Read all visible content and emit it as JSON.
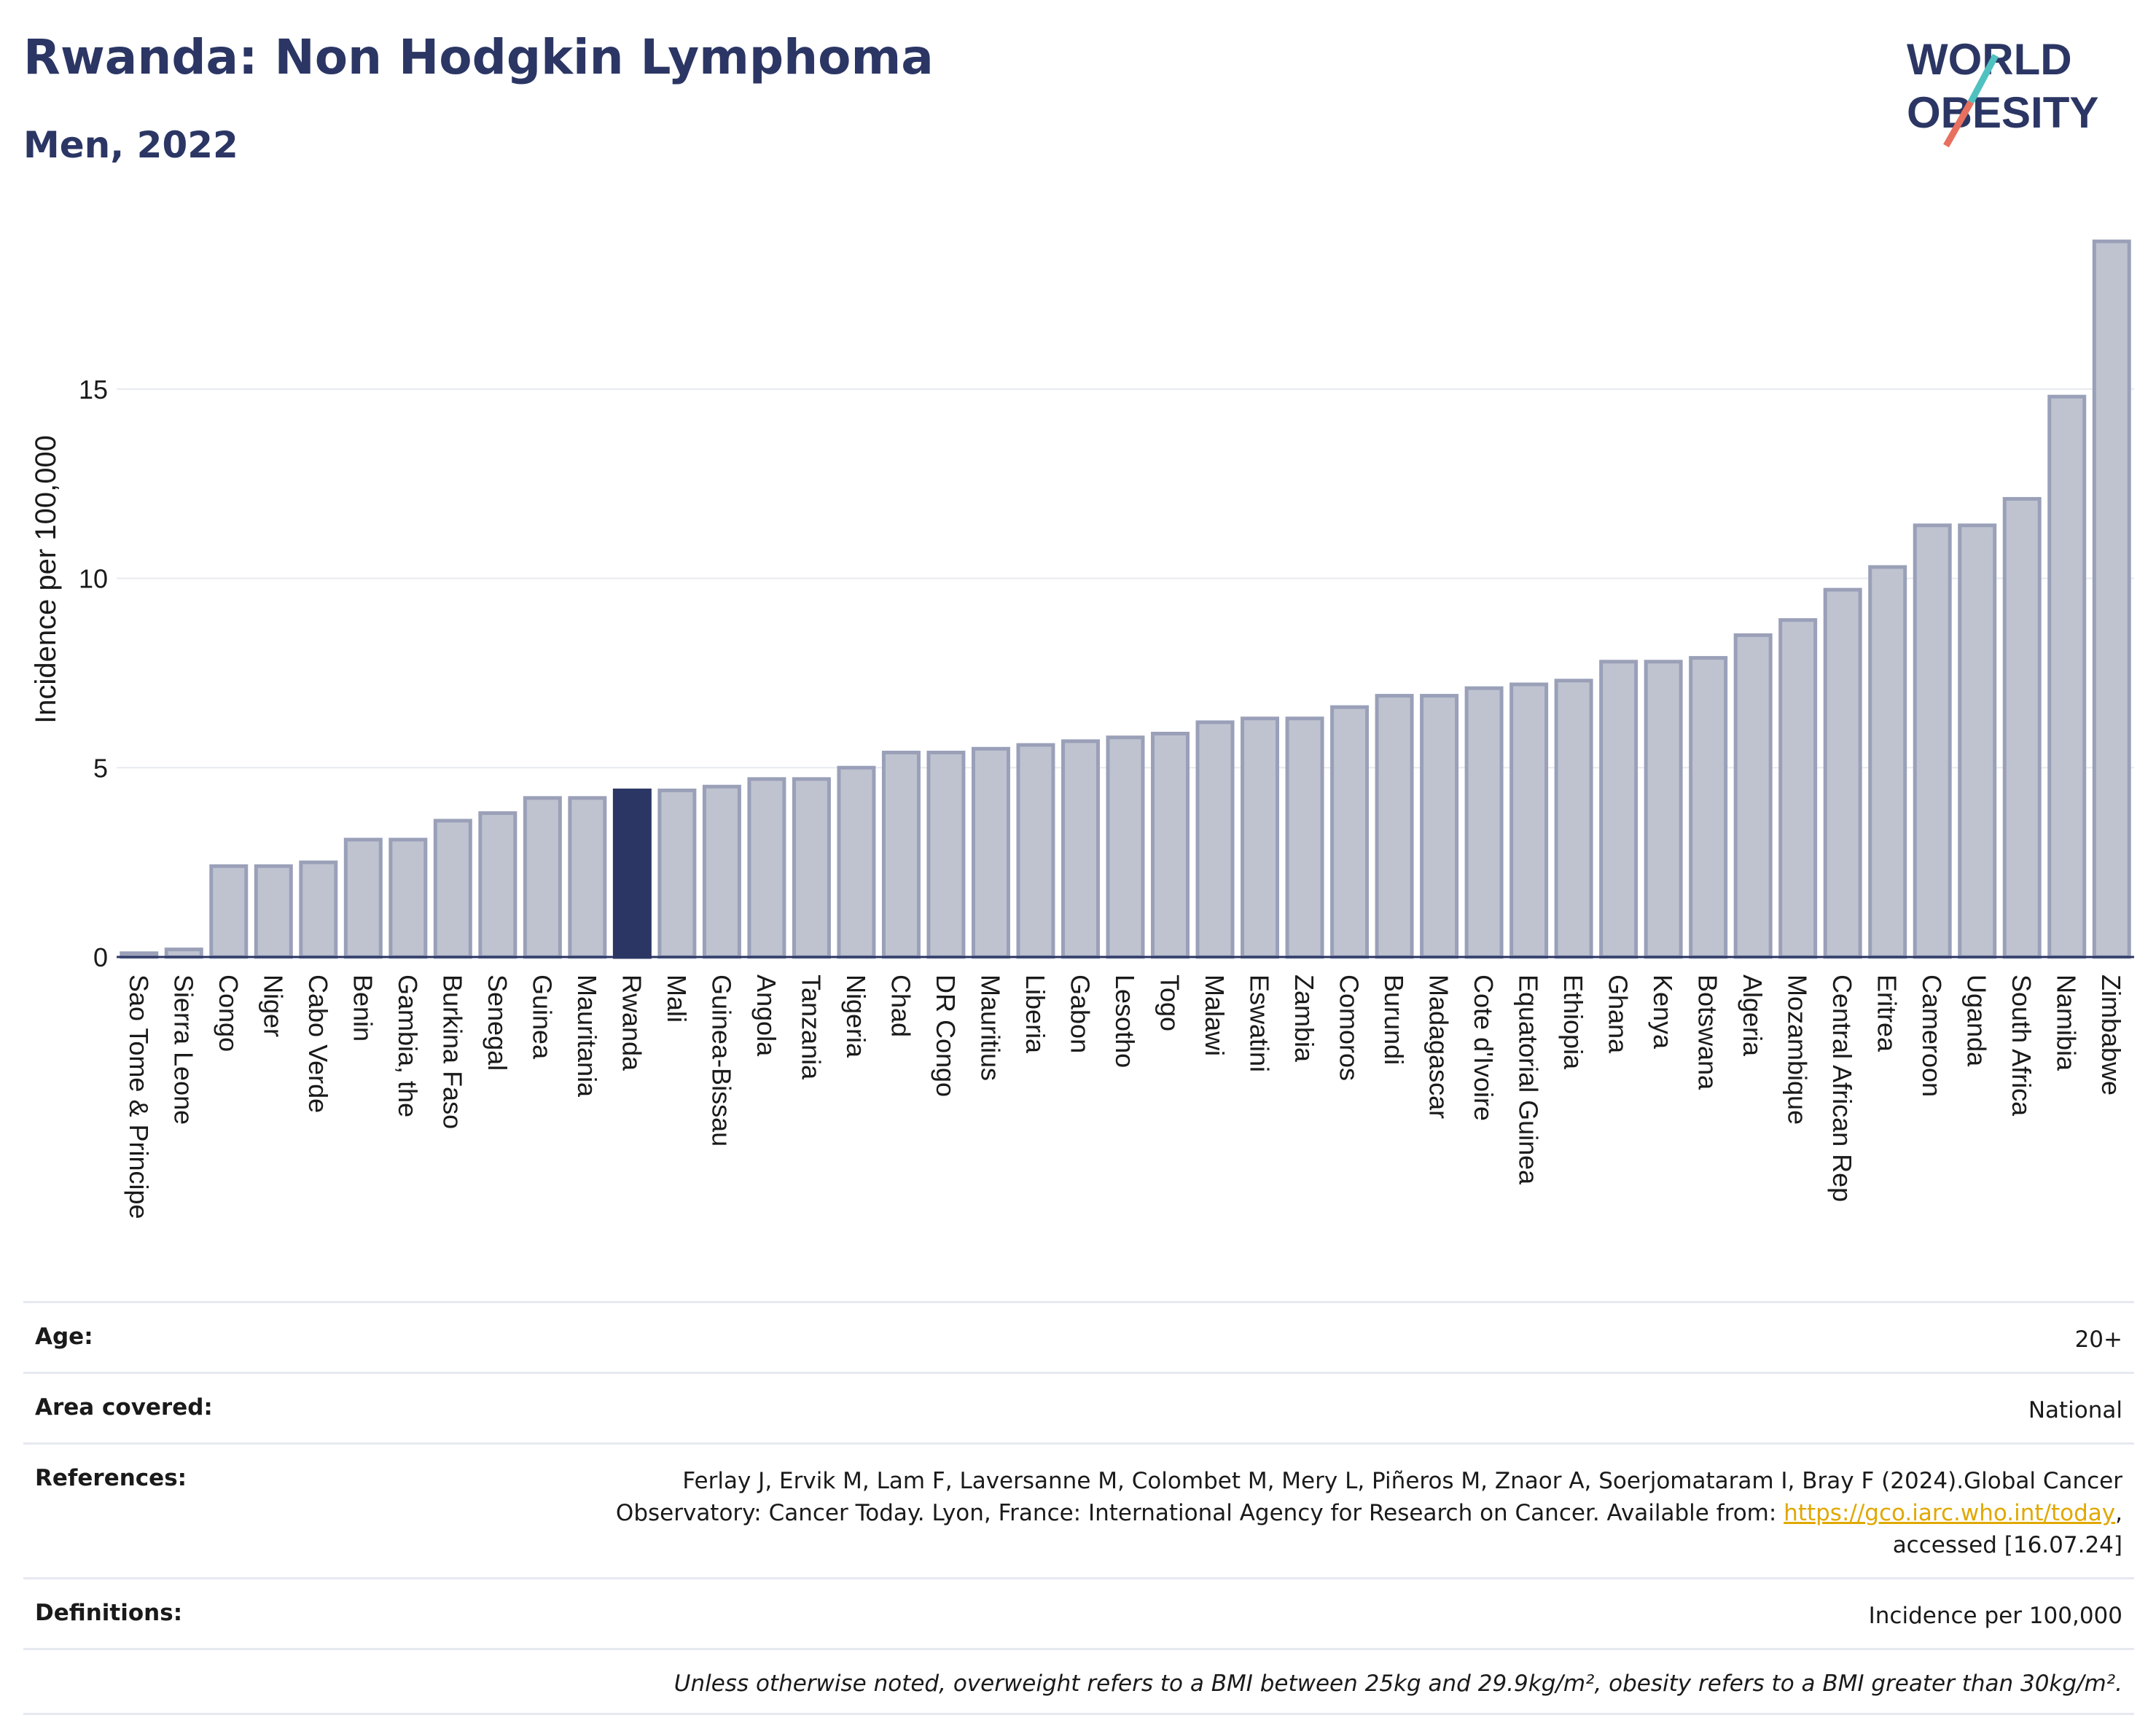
{
  "header": {
    "title": "Rwanda: Non Hodgkin Lymphoma",
    "subtitle": "Men, 2022"
  },
  "logo": {
    "line1": "WORLD",
    "line2": "OBESITY"
  },
  "colors": {
    "highlight": "#2b3664",
    "bar": "#bfc3d0",
    "bar_edge": "#9aa0b8",
    "title": "#2b3664"
  },
  "chart_data": {
    "type": "bar",
    "highlight": "Rwanda",
    "ylabel": "Incidence per 100,000",
    "ylim": [
      0,
      19.5
    ],
    "yticks": [
      0,
      5,
      10,
      15
    ],
    "categories": [
      "Sao Tome & Principe",
      "Sierra Leone",
      "Congo",
      "Niger",
      "Cabo Verde",
      "Benin",
      "Gambia, the",
      "Burkina Faso",
      "Senegal",
      "Guinea",
      "Mauritania",
      "Rwanda",
      "Mali",
      "Guinea-Bissau",
      "Angola",
      "Tanzania",
      "Nigeria",
      "Chad",
      "DR Congo",
      "Mauritius",
      "Liberia",
      "Gabon",
      "Lesotho",
      "Togo",
      "Malawi",
      "Eswatini",
      "Zambia",
      "Comoros",
      "Burundi",
      "Madagascar",
      "Cote d'Ivoire",
      "Equatorial Guinea",
      "Ethiopia",
      "Ghana",
      "Kenya",
      "Botswana",
      "Algeria",
      "Mozambique",
      "Central African Rep",
      "Eritrea",
      "Cameroon",
      "Uganda",
      "South Africa",
      "Namibia",
      "Zimbabwe"
    ],
    "values": [
      0.1,
      0.2,
      2.4,
      2.4,
      2.5,
      3.1,
      3.1,
      3.6,
      3.8,
      4.2,
      4.2,
      4.4,
      4.4,
      4.5,
      4.7,
      4.7,
      5.0,
      5.4,
      5.4,
      5.5,
      5.6,
      5.7,
      5.8,
      5.9,
      6.2,
      6.3,
      6.3,
      6.6,
      6.9,
      6.9,
      7.1,
      7.2,
      7.3,
      7.8,
      7.8,
      7.9,
      8.5,
      8.9,
      9.7,
      10.3,
      11.4,
      11.4,
      12.1,
      14.8,
      18.9
    ]
  },
  "footer": {
    "age_label": "Age:",
    "age_value": "20+",
    "area_label": "Area covered:",
    "area_value": "National",
    "ref_label": "References:",
    "ref_line1": "Ferlay J, Ervik M, Lam F, Laversanne M, Colombet M, Mery L, Piñeros M, Znaor A, Soerjomataram I, Bray F (2024).Global Cancer",
    "ref_line2_pre": "Observatory: Cancer Today. Lyon, France: International Agency for Research on Cancer. Available from: ",
    "ref_link": "https://gco.iarc.who.int/today",
    "ref_line2_post": ",",
    "ref_line3": "accessed [16.07.24]",
    "def_label": "Definitions:",
    "def_value": "Incidence per 100,000",
    "note": "Unless otherwise noted, overweight refers to a BMI between 25kg and 29.9kg/m², obesity refers to a BMI greater than 30kg/m²."
  }
}
